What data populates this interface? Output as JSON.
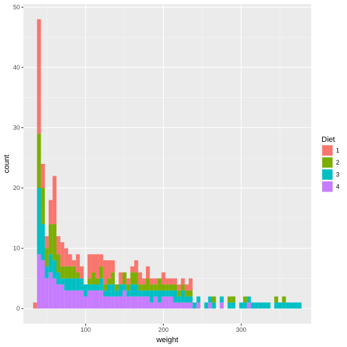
{
  "chart_data": {
    "type": "histogram",
    "title": "",
    "xlabel": "weight",
    "ylabel": "count",
    "xlim": [
      20,
      390
    ],
    "ylim": [
      -2.5,
      50.5
    ],
    "x_ticks": [
      100,
      200,
      300
    ],
    "y_ticks": [
      0,
      10,
      20,
      30,
      40,
      50
    ],
    "grid": true,
    "stacked": true,
    "bin_width": 5,
    "legend": {
      "title": "Diet",
      "position": "right"
    },
    "x": [
      35,
      40,
      45,
      50,
      55,
      60,
      65,
      70,
      75,
      80,
      85,
      90,
      95,
      100,
      105,
      110,
      115,
      120,
      125,
      130,
      135,
      140,
      145,
      150,
      155,
      160,
      165,
      170,
      175,
      180,
      185,
      190,
      195,
      200,
      205,
      210,
      215,
      220,
      225,
      230,
      235,
      240,
      245,
      250,
      255,
      260,
      265,
      270,
      275,
      280,
      285,
      290,
      295,
      300,
      305,
      310,
      315,
      320,
      325,
      330,
      335,
      340,
      345,
      350,
      355,
      360,
      365,
      370,
      375
    ],
    "series": [
      {
        "name": "1",
        "color": "#F8766D",
        "values": [
          1,
          19,
          4,
          2,
          4,
          8,
          3,
          4,
          3,
          2,
          1,
          3,
          2,
          0,
          4,
          3,
          4,
          2,
          4,
          3,
          2,
          0,
          2,
          0,
          1,
          1,
          2,
          2,
          1,
          2,
          1,
          1,
          0,
          2,
          1,
          1,
          1,
          1,
          1,
          1,
          2,
          0,
          0,
          0,
          0,
          0,
          0,
          0,
          0,
          0,
          0,
          0,
          0,
          0,
          0,
          0,
          0,
          0,
          0,
          0,
          0,
          0,
          0,
          0,
          0,
          0,
          0,
          0,
          0
        ]
      },
      {
        "name": "2",
        "color": "#7CAE00",
        "values": [
          0,
          9,
          6,
          3,
          5,
          6,
          3,
          2,
          2,
          2,
          2,
          1,
          0,
          0,
          1,
          2,
          1,
          2,
          1,
          1,
          2,
          1,
          0,
          2,
          1,
          2,
          2,
          1,
          1,
          2,
          1,
          1,
          2,
          1,
          1,
          1,
          1,
          1,
          1,
          1,
          1,
          0,
          0,
          0,
          0,
          0,
          1,
          0,
          0,
          0,
          1,
          1,
          0,
          0,
          1,
          0,
          0,
          0,
          0,
          0,
          0,
          0,
          1,
          0,
          1,
          0,
          0,
          0,
          0
        ]
      },
      {
        "name": "3",
        "color": "#00BFC4",
        "values": [
          0,
          11,
          6,
          2,
          3,
          3,
          2,
          1,
          2,
          2,
          2,
          2,
          2,
          2,
          1,
          1,
          1,
          2,
          1,
          2,
          2,
          1,
          2,
          1,
          1,
          2,
          2,
          1,
          1,
          1,
          2,
          1,
          2,
          1,
          1,
          1,
          2,
          1,
          2,
          1,
          1,
          1,
          1,
          0,
          1,
          1,
          1,
          0,
          1,
          0,
          1,
          1,
          0,
          1,
          1,
          1,
          1,
          1,
          1,
          1,
          1,
          0,
          1,
          1,
          1,
          1,
          1,
          1,
          1
        ]
      },
      {
        "name": "4",
        "color": "#C77CFF",
        "values": [
          0,
          9,
          8,
          5,
          6,
          5,
          4,
          4,
          3,
          3,
          3,
          3,
          3,
          2,
          3,
          3,
          3,
          3,
          2,
          2,
          2,
          2,
          2,
          3,
          2,
          2,
          2,
          2,
          2,
          2,
          1,
          2,
          1,
          2,
          2,
          2,
          1,
          1,
          1,
          1,
          1,
          0,
          1,
          0,
          0,
          1,
          0,
          0,
          1,
          0,
          0,
          0,
          0,
          0,
          0,
          1,
          0,
          0,
          0,
          0,
          0,
          0,
          0,
          0,
          0,
          0,
          0,
          0,
          0
        ]
      }
    ]
  }
}
